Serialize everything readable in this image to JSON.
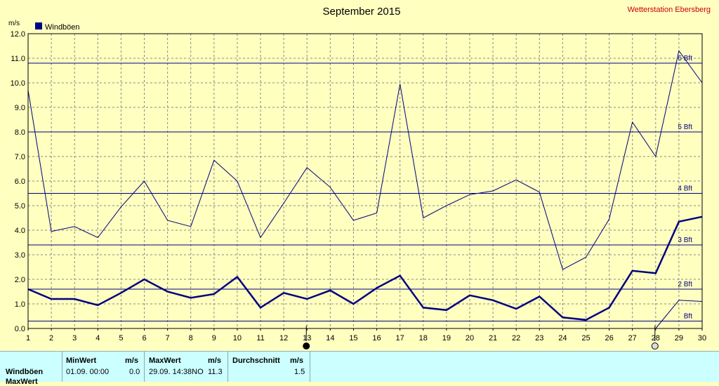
{
  "chart_data": {
    "type": "line",
    "title": "September 2015",
    "station": "Wetterstation Ebersberg",
    "ylabel": "m/s",
    "legend": "Windböen",
    "legend_placement": "top-left",
    "grid": true,
    "ylim": [
      0,
      12
    ],
    "yticks": [
      "0.0",
      "1.0",
      "2.0",
      "3.0",
      "4.0",
      "5.0",
      "6.0",
      "7.0",
      "8.0",
      "9.0",
      "10.0",
      "11.0",
      "12.0"
    ],
    "categories": [
      "1",
      "2",
      "3",
      "4",
      "5",
      "6",
      "7",
      "8",
      "9",
      "10",
      "11",
      "12",
      "13",
      "14",
      "15",
      "16",
      "17",
      "18",
      "19",
      "20",
      "21",
      "22",
      "23",
      "24",
      "25",
      "26",
      "27",
      "28",
      "29",
      "30"
    ],
    "series": [
      {
        "name": "Windböen",
        "values": [
          1.6,
          1.2,
          1.2,
          0.95,
          1.45,
          2.0,
          1.5,
          1.25,
          1.4,
          2.1,
          0.85,
          1.45,
          1.2,
          1.55,
          1.0,
          1.65,
          2.15,
          0.85,
          0.75,
          1.35,
          1.15,
          0.8,
          1.3,
          0.45,
          0.35,
          0.85,
          2.35,
          2.25,
          4.35,
          4.55
        ]
      },
      {
        "values": [
          9.7,
          3.95,
          4.15,
          3.7,
          4.95,
          6.0,
          4.4,
          4.15,
          6.85,
          6.0,
          3.7,
          5.1,
          6.55,
          5.75,
          4.4,
          4.7,
          9.95,
          4.5,
          5.0,
          5.45,
          5.6,
          6.05,
          5.55,
          2.4,
          2.9,
          4.45,
          8.4,
          7.0,
          11.3,
          10.0
        ]
      },
      {
        "values": [
          null,
          null,
          null,
          null,
          null,
          null,
          null,
          null,
          null,
          null,
          null,
          null,
          null,
          null,
          null,
          null,
          null,
          null,
          null,
          null,
          null,
          null,
          null,
          null,
          null,
          null,
          null,
          0.0,
          1.15,
          1.1
        ]
      }
    ],
    "beaufort": [
      {
        "label": "Bft",
        "value": 0.3
      },
      {
        "label": "2 Bft",
        "value": 1.6
      },
      {
        "label": "3 Bft",
        "value": 3.4
      },
      {
        "label": "4 Bft",
        "value": 5.5
      },
      {
        "label": "5 Bft",
        "value": 8.0
      },
      {
        "label": "6 Bft",
        "value": 10.8
      }
    ],
    "markers": [
      "13",
      "28"
    ]
  },
  "table": {
    "row_label": "Windböen",
    "row2_label": "MaxWert",
    "min_header": "MinWert",
    "min_unit": "m/s",
    "min_date": "01.09.  00:00",
    "min_value": "0.0",
    "max_header": "MaxWert",
    "max_unit": "m/s",
    "max_date": "29.09.  14:38NO",
    "max_value": "11.3",
    "avg_header": "Durchschnitt",
    "avg_unit": "m/s",
    "avg_value": "1.5"
  },
  "colors": {
    "background": "#ffffc0",
    "line": "#000080",
    "grid": "#808080",
    "panel": "#ccffff",
    "station": "#cc0000"
  }
}
